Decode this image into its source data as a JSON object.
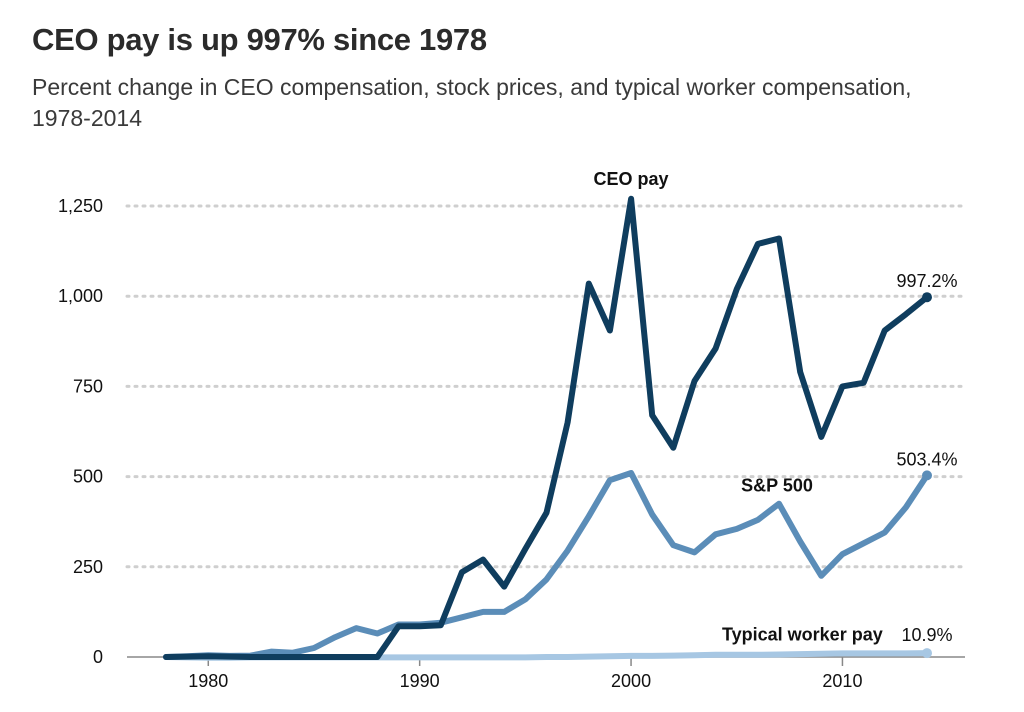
{
  "header": {
    "title": "CEO pay is up 997% since 1978",
    "subtitle": "Percent change in CEO compensation, stock prices, and typical worker compensation, 1978-2014"
  },
  "chart_data": {
    "type": "line",
    "title": "CEO pay is up 997% since 1978",
    "subtitle": "Percent change in CEO compensation, stock prices, and typical worker compensation, 1978-2014",
    "xlabel": "",
    "ylabel": "",
    "xlim": [
      1978,
      2014
    ],
    "ylim": [
      0,
      1250
    ],
    "grid": "horizontal-dotted",
    "x_ticks": [
      1980,
      1990,
      2000,
      2010
    ],
    "y_ticks": [
      0,
      250,
      500,
      750,
      1000,
      1250
    ],
    "y_tick_labels": [
      "0",
      "250",
      "500",
      "750",
      "1,000",
      "1,250"
    ],
    "x": [
      1978,
      1979,
      1980,
      1981,
      1982,
      1983,
      1984,
      1985,
      1986,
      1987,
      1988,
      1989,
      1990,
      1991,
      1992,
      1993,
      1994,
      1995,
      1996,
      1997,
      1998,
      1999,
      2000,
      2001,
      2002,
      2003,
      2004,
      2005,
      2006,
      2007,
      2008,
      2009,
      2010,
      2011,
      2012,
      2013,
      2014
    ],
    "series": [
      {
        "name": "CEO pay",
        "color": "#0f3d5e",
        "end_label": "997.2%",
        "values": [
          0,
          1,
          2,
          1,
          0,
          0,
          0,
          0,
          0,
          0,
          0,
          85,
          85,
          88,
          235,
          270,
          195,
          300,
          400,
          650,
          1035,
          905,
          1270,
          670,
          580,
          765,
          855,
          1020,
          1145,
          1160,
          790,
          610,
          750,
          760,
          905,
          950,
          997.2
        ]
      },
      {
        "name": "S&P 500",
        "color": "#5b8db8",
        "end_label": "503.4%",
        "values": [
          0,
          2,
          5,
          3,
          4,
          15,
          12,
          25,
          55,
          80,
          65,
          90,
          90,
          95,
          110,
          125,
          125,
          160,
          215,
          295,
          390,
          490,
          510,
          395,
          310,
          290,
          340,
          355,
          380,
          425,
          320,
          225,
          285,
          315,
          345,
          415,
          503.4
        ]
      },
      {
        "name": "Typical worker pay",
        "color": "#a7c7e3",
        "end_label": "10.9%",
        "values": [
          0,
          -1,
          -2,
          -2,
          -1,
          -1,
          -1,
          -1,
          -1,
          -1,
          -1,
          -1,
          -1,
          -1,
          -1,
          -1,
          -1,
          -1,
          0,
          0,
          1,
          2,
          3,
          3,
          4,
          5,
          6,
          6,
          6,
          7,
          8,
          9,
          10,
          10,
          10,
          10,
          10.9
        ]
      }
    ]
  }
}
